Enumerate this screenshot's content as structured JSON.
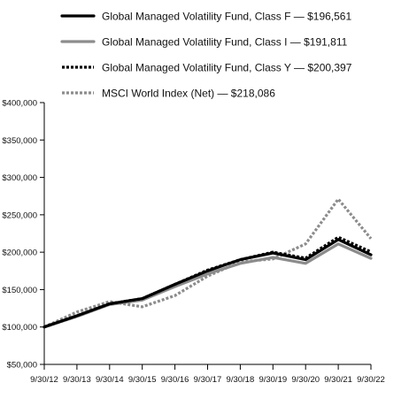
{
  "chart_data": {
    "type": "line",
    "title": "",
    "xlabel": "",
    "ylabel": "",
    "categories": [
      "9/30/12",
      "9/30/13",
      "9/30/14",
      "9/30/15",
      "9/30/16",
      "9/30/17",
      "9/30/18",
      "9/30/19",
      "9/30/20",
      "9/30/21",
      "9/30/22"
    ],
    "ylim": [
      50000,
      400000
    ],
    "yticks": [
      "$50,000",
      "$100,000",
      "$150,000",
      "$200,000",
      "$250,000",
      "$300,000",
      "$350,000",
      "$400,000"
    ],
    "ytick_values": [
      50000,
      100000,
      150000,
      200000,
      250000,
      300000,
      350000,
      400000
    ],
    "grid": false,
    "legend_position": "top",
    "series": [
      {
        "name": "Global Managed Volatility Fund, Class F — $196,561",
        "color": "#000000",
        "style": "solid",
        "values": [
          100000,
          115000,
          131000,
          138000,
          157000,
          175000,
          190000,
          199000,
          190000,
          217000,
          196561
        ]
      },
      {
        "name": "Global Managed Volatility Fund, Class I — $191,811",
        "color": "#8c8c8c",
        "style": "solid",
        "values": [
          100000,
          114000,
          130000,
          136000,
          154000,
          171000,
          185000,
          193000,
          185000,
          211000,
          191811
        ]
      },
      {
        "name": "Global Managed Volatility Fund, Class Y — $200,397",
        "color": "#000000",
        "style": "dotted",
        "values": [
          100000,
          115000,
          131000,
          138000,
          157000,
          176000,
          190000,
          200000,
          192000,
          220000,
          200397
        ]
      },
      {
        "name": "MSCI World Index (Net) — $218,086",
        "color": "#8c8c8c",
        "style": "dotted",
        "values": [
          100000,
          120000,
          134000,
          127000,
          142000,
          168000,
          187000,
          191000,
          211000,
          271000,
          218086
        ]
      }
    ]
  }
}
